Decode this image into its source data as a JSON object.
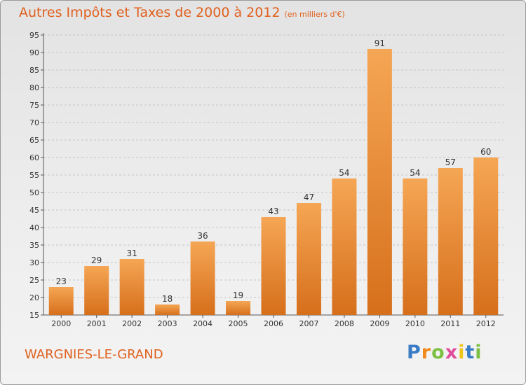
{
  "title": "Autres Impôts et Taxes de 2000 à 2012",
  "subtitle": "(en milliers d'€)",
  "commune": "WARGNIES-LE-GRAND",
  "logo": "Proxiti",
  "colors": {
    "bar_top": "#f5a654",
    "bar_bottom": "#d66f1c",
    "accent": "#e0601e",
    "grid": "#c4c4c4"
  },
  "chart_data": {
    "type": "bar",
    "title": "Autres Impôts et Taxes de 2000 à 2012",
    "subtitle": "(en milliers d'€)",
    "xlabel": "",
    "ylabel": "",
    "categories": [
      "2000",
      "2001",
      "2002",
      "2003",
      "2004",
      "2005",
      "2006",
      "2007",
      "2008",
      "2009",
      "2010",
      "2011",
      "2012"
    ],
    "values": [
      23,
      29,
      31,
      18,
      36,
      19,
      43,
      47,
      54,
      91,
      54,
      57,
      60
    ],
    "ylim": [
      15,
      95
    ],
    "yticks": [
      15,
      20,
      25,
      30,
      35,
      40,
      45,
      50,
      55,
      60,
      65,
      70,
      75,
      80,
      85,
      90,
      95
    ],
    "grid": "horizontal dashed",
    "data_labels": true
  }
}
